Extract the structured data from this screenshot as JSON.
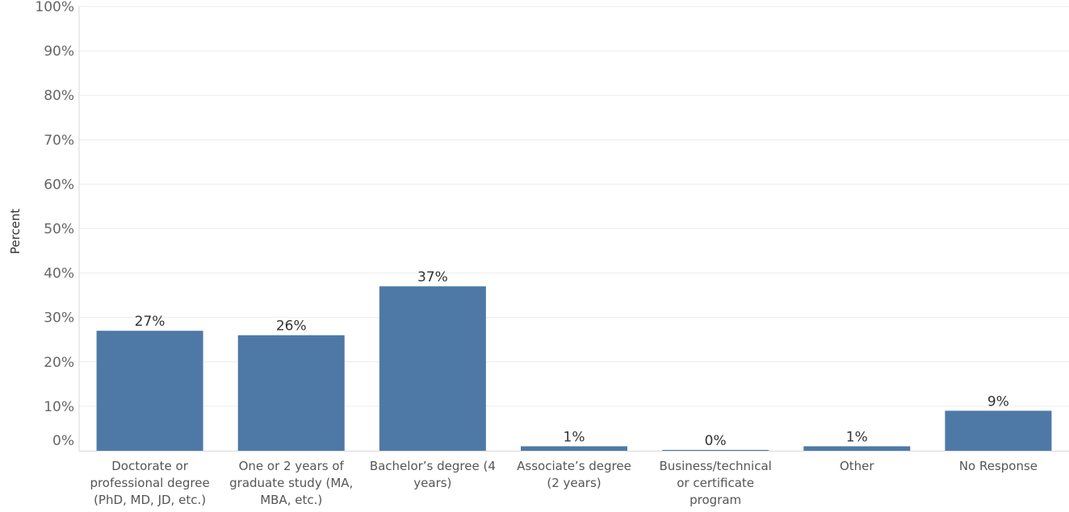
{
  "chart_data": {
    "type": "bar",
    "ylabel": "Percent",
    "ylim": [
      0,
      100
    ],
    "yticks": [
      "0%",
      "10%",
      "20%",
      "30%",
      "40%",
      "50%",
      "60%",
      "70%",
      "80%",
      "90%",
      "100%"
    ],
    "categories": [
      "Doctorate or professional degree (PhD, MD, JD, etc.)",
      "One or 2 years of graduate study (MA, MBA, etc.)",
      "Bachelor’s degree (4 years)",
      "Associate’s degree (2 years)",
      "Business/technical or certificate program",
      "Other",
      "No Response"
    ],
    "category_lines": [
      [
        "Doctorate or",
        "professional degree",
        "(PhD, MD, JD, etc.)"
      ],
      [
        "One or 2 years of",
        "graduate study (MA,",
        "MBA, etc.)"
      ],
      [
        "Bachelor’s degree (4",
        "years)"
      ],
      [
        "Associate’s degree",
        "(2 years)"
      ],
      [
        "Business/technical",
        "or certificate",
        "program"
      ],
      [
        "Other"
      ],
      [
        "No Response"
      ]
    ],
    "values": [
      27,
      26,
      37,
      1,
      0,
      1,
      9
    ],
    "data_labels": [
      "27%",
      "26%",
      "37%",
      "1%",
      "0%",
      "1%",
      "9%"
    ],
    "bar_color": "#4e79a7",
    "grid": true,
    "legend": "none"
  }
}
